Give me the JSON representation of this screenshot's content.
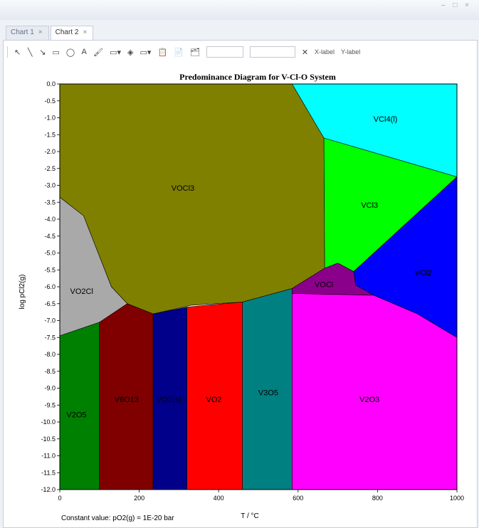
{
  "window": {
    "controls": "– □ ×"
  },
  "tabs": [
    {
      "label": "Chart 1",
      "close": "×"
    },
    {
      "label": "Chart 2",
      "close": "×"
    }
  ],
  "toolbar": {
    "icons": [
      "pointer-icon",
      "line-icon",
      "arrow-icon",
      "rectangle-icon",
      "ellipse-icon",
      "text-icon",
      "paint-icon",
      "border-icon",
      "fill-icon",
      "line-style-icon",
      "copy-icon",
      "paste-icon",
      "layer-icon"
    ],
    "glyphs": [
      "↖",
      "╲",
      "↘",
      "▭",
      "◯",
      "A",
      "🖌",
      "▭▾",
      "◈",
      "▭▾",
      "📋",
      "📄",
      "🗂"
    ],
    "clear_glyph": "✕",
    "xlabel_button": "X-label",
    "ylabel_button": "Y-label"
  },
  "chart_data": {
    "type": "area",
    "title": "Predominance Diagram for V-Cl-O System",
    "xlabel": "T / °C",
    "ylabel": "log pCl2(g)",
    "xlim": [
      0,
      1000
    ],
    "ylim": [
      -12.0,
      0.0
    ],
    "xticks": [
      "0",
      "200",
      "400",
      "600",
      "800",
      "1000"
    ],
    "xtick_values": [
      0,
      200,
      400,
      600,
      800,
      1000
    ],
    "yticks": [
      "0.0",
      "-0.5",
      "-1.0",
      "-1.5",
      "-2.0",
      "-2.5",
      "-3.0",
      "-3.5",
      "-4.0",
      "-4.5",
      "-5.0",
      "-5.5",
      "-6.0",
      "-6.5",
      "-7.0",
      "-7.5",
      "-8.0",
      "-8.5",
      "-9.0",
      "-9.5",
      "-10.0",
      "-10.5",
      "-11.0",
      "-11.5",
      "-12.0"
    ],
    "footnote": "Constant value: pO2(g) = 1E-20 bar",
    "regions": [
      {
        "label": "VOCl3",
        "color": "#808000",
        "label_at": [
          310,
          -3.1
        ],
        "polygon": [
          [
            0,
            0
          ],
          [
            585,
            0
          ],
          [
            665,
            -1.6
          ],
          [
            667,
            -5.45
          ],
          [
            585,
            -6.05
          ],
          [
            460,
            -6.45
          ],
          [
            330,
            -6.55
          ],
          [
            235,
            -6.8
          ],
          [
            170,
            -6.5
          ],
          [
            130,
            -6.0
          ],
          [
            80,
            -4.5
          ],
          [
            60,
            -3.9
          ],
          [
            0,
            -3.35
          ]
        ]
      },
      {
        "label": "VCl4(l)",
        "color": "#00ffff",
        "label_at": [
          820,
          -1.05
        ],
        "polygon": [
          [
            585,
            0
          ],
          [
            1000,
            0
          ],
          [
            1000,
            -2.75
          ],
          [
            665,
            -1.6
          ]
        ]
      },
      {
        "label": "VCl3",
        "color": "#00ff00",
        "label_at": [
          780,
          -3.6
        ],
        "polygon": [
          [
            665,
            -1.6
          ],
          [
            1000,
            -2.75
          ],
          [
            740,
            -5.55
          ],
          [
            700,
            -5.3
          ],
          [
            667,
            -5.45
          ]
        ]
      },
      {
        "label": "VCl2",
        "color": "#0000ff",
        "label_at": [
          915,
          -5.6
        ],
        "polygon": [
          [
            1000,
            -2.75
          ],
          [
            1000,
            -7.5
          ],
          [
            900,
            -6.8
          ],
          [
            790,
            -6.25
          ],
          [
            745,
            -5.95
          ],
          [
            740,
            -5.55
          ]
        ]
      },
      {
        "label": "VOCl",
        "color": "#8b008b",
        "label_at": [
          665,
          -5.95
        ],
        "polygon": [
          [
            667,
            -5.45
          ],
          [
            700,
            -5.3
          ],
          [
            740,
            -5.55
          ],
          [
            745,
            -5.95
          ],
          [
            790,
            -6.25
          ],
          [
            585,
            -6.2
          ],
          [
            585,
            -6.05
          ]
        ]
      },
      {
        "label": "VO2Cl",
        "color": "#a9a9a9",
        "label_at": [
          55,
          -6.15
        ],
        "polygon": [
          [
            0,
            -3.35
          ],
          [
            60,
            -3.9
          ],
          [
            80,
            -4.5
          ],
          [
            130,
            -6.0
          ],
          [
            170,
            -6.5
          ],
          [
            100,
            -7.05
          ],
          [
            0,
            -7.45
          ]
        ]
      },
      {
        "label": "V2O5",
        "color": "#008000",
        "label_at": [
          42,
          -9.8
        ],
        "polygon": [
          [
            0,
            -7.45
          ],
          [
            100,
            -7.05
          ],
          [
            100,
            -12.0
          ],
          [
            0,
            -12.0
          ]
        ]
      },
      {
        "label": "V6O13",
        "color": "#800000",
        "label_at": [
          168,
          -9.35
        ],
        "polygon": [
          [
            100,
            -7.05
          ],
          [
            170,
            -6.5
          ],
          [
            235,
            -6.8
          ],
          [
            235,
            -12.0
          ],
          [
            100,
            -12.0
          ]
        ]
      },
      {
        "label": "VO2(s)",
        "color": "#00008b",
        "label_at": [
          275,
          -9.35
        ],
        "polygon": [
          [
            235,
            -6.8
          ],
          [
            320,
            -6.6
          ],
          [
            320,
            -12.0
          ],
          [
            235,
            -12.0
          ]
        ]
      },
      {
        "label": "VO2",
        "color": "#ff0000",
        "label_at": [
          388,
          -9.35
        ],
        "polygon": [
          [
            320,
            -6.6
          ],
          [
            460,
            -6.45
          ],
          [
            460,
            -12.0
          ],
          [
            320,
            -12.0
          ]
        ]
      },
      {
        "label": "V3O5",
        "color": "#008080",
        "label_at": [
          525,
          -9.15
        ],
        "polygon": [
          [
            460,
            -6.45
          ],
          [
            585,
            -6.05
          ],
          [
            585,
            -12.0
          ],
          [
            460,
            -12.0
          ]
        ]
      },
      {
        "label": "V2O3",
        "color": "#ff00ff",
        "label_at": [
          780,
          -9.35
        ],
        "polygon": [
          [
            585,
            -6.2
          ],
          [
            790,
            -6.25
          ],
          [
            900,
            -6.8
          ],
          [
            1000,
            -7.5
          ],
          [
            1000,
            -12.0
          ],
          [
            585,
            -12.0
          ]
        ]
      }
    ]
  }
}
